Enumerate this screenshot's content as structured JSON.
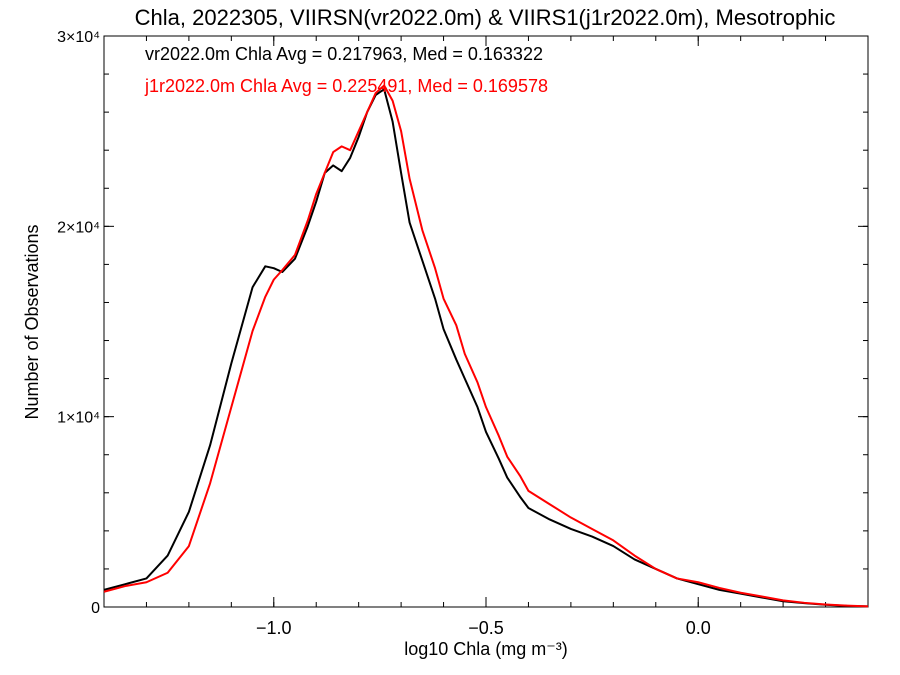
{
  "chart_data": {
    "type": "line",
    "title": "Chla, 2022305, VIIRSN(vr2022.0m) & VIIRS1(j1r2022.0m), Mesotrophic",
    "xlabel": "log10 Chla (mg m⁻³)",
    "ylabel": "Number of Observations",
    "xlim": [
      -1.4,
      0.4
    ],
    "ylim": [
      0,
      30000
    ],
    "x_ticks": [
      {
        "value": -1.0,
        "label": "−1.0"
      },
      {
        "value": -0.5,
        "label": "−0.5"
      },
      {
        "value": 0.0,
        "label": "0.0"
      }
    ],
    "y_ticks": [
      {
        "value": 0,
        "label": "0"
      },
      {
        "value": 10000,
        "label": "1×10⁴"
      },
      {
        "value": 20000,
        "label": "2×10⁴"
      },
      {
        "value": 30000,
        "label": "3×10⁴"
      }
    ],
    "annotations": [
      {
        "text": "vr2022.0m Chla Avg = 0.217963, Med = 0.163322",
        "color": "#000000"
      },
      {
        "text": "j1r2022.0m Chla Avg = 0.225491, Med = 0.169578",
        "color": "#ff0000"
      }
    ],
    "series": [
      {
        "name": "vr2022.0m",
        "color": "#000000",
        "x": [
          -1.4,
          -1.35,
          -1.3,
          -1.25,
          -1.2,
          -1.15,
          -1.1,
          -1.05,
          -1.02,
          -1.0,
          -0.98,
          -0.95,
          -0.92,
          -0.9,
          -0.88,
          -0.86,
          -0.84,
          -0.82,
          -0.8,
          -0.78,
          -0.76,
          -0.74,
          -0.72,
          -0.7,
          -0.68,
          -0.65,
          -0.62,
          -0.6,
          -0.57,
          -0.55,
          -0.52,
          -0.5,
          -0.47,
          -0.45,
          -0.42,
          -0.4,
          -0.35,
          -0.3,
          -0.25,
          -0.2,
          -0.15,
          -0.1,
          -0.05,
          0.0,
          0.05,
          0.1,
          0.15,
          0.2,
          0.25,
          0.3,
          0.35,
          0.4
        ],
        "y": [
          900,
          1200,
          1500,
          2700,
          5000,
          8500,
          12800,
          16800,
          17900,
          17800,
          17600,
          18300,
          20000,
          21300,
          22800,
          23200,
          22900,
          23600,
          24700,
          26000,
          26900,
          27200,
          25500,
          22800,
          20200,
          18200,
          16200,
          14600,
          13000,
          12000,
          10500,
          9200,
          7800,
          6800,
          5800,
          5200,
          4600,
          4100,
          3700,
          3200,
          2500,
          2000,
          1500,
          1200,
          900,
          700,
          500,
          300,
          200,
          120,
          60,
          30
        ]
      },
      {
        "name": "j1r2022.0m",
        "color": "#ff0000",
        "x": [
          -1.4,
          -1.35,
          -1.3,
          -1.25,
          -1.2,
          -1.15,
          -1.1,
          -1.05,
          -1.02,
          -1.0,
          -0.98,
          -0.95,
          -0.92,
          -0.9,
          -0.88,
          -0.86,
          -0.84,
          -0.82,
          -0.8,
          -0.78,
          -0.76,
          -0.74,
          -0.72,
          -0.7,
          -0.68,
          -0.65,
          -0.62,
          -0.6,
          -0.57,
          -0.55,
          -0.52,
          -0.5,
          -0.47,
          -0.45,
          -0.42,
          -0.4,
          -0.35,
          -0.3,
          -0.25,
          -0.2,
          -0.15,
          -0.1,
          -0.05,
          0.0,
          0.05,
          0.1,
          0.15,
          0.2,
          0.25,
          0.3,
          0.35,
          0.4
        ],
        "y": [
          800,
          1100,
          1300,
          1800,
          3200,
          6500,
          10500,
          14500,
          16300,
          17200,
          17700,
          18500,
          20300,
          21700,
          22800,
          23900,
          24200,
          24000,
          25000,
          26000,
          27000,
          27400,
          26600,
          25000,
          22500,
          19800,
          17800,
          16200,
          14800,
          13300,
          11800,
          10500,
          9000,
          7900,
          6900,
          6100,
          5400,
          4700,
          4100,
          3500,
          2700,
          2000,
          1500,
          1300,
          1000,
          750,
          550,
          350,
          220,
          130,
          70,
          30
        ]
      }
    ]
  }
}
